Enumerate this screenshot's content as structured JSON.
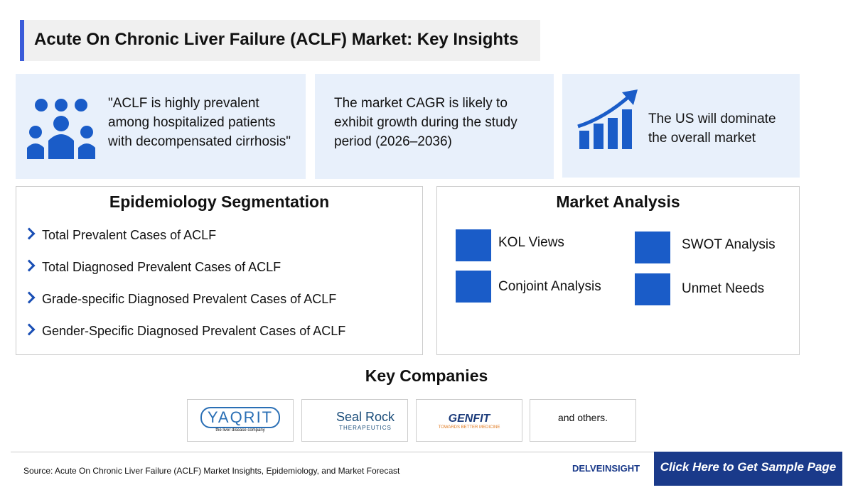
{
  "header": {
    "title": "Acute On Chronic Liver Failure (ACLF) Market: Key Insights"
  },
  "insights": [
    "\"ACLF is highly prevalent among hospitalized patients with decompensated cirrhosis\"",
    "The market CAGR is likely to exhibit growth during the study period (2026–2036)",
    "The US will dominate the overall market"
  ],
  "epidemiology": {
    "title": "Epidemiology Segmentation",
    "items": [
      "Total Prevalent Cases of ACLF",
      "Total Diagnosed Prevalent Cases of ACLF",
      "Grade-specific Diagnosed Prevalent Cases of ACLF",
      "Gender-Specific Diagnosed Prevalent Cases of ACLF"
    ]
  },
  "market_analysis": {
    "title": "Market Analysis",
    "items": [
      "KOL Views",
      "Conjoint Analysis",
      "SWOT Analysis",
      "Unmet Needs"
    ]
  },
  "key_companies": {
    "title": "Key Companies",
    "logos": [
      {
        "name": "YAQRIT",
        "tagline": "the liver disease company"
      },
      {
        "name": "Seal Rock",
        "tagline": "THERAPEUTICS"
      },
      {
        "name": "GENFIT",
        "tagline": "TOWARDS BETTER MEDICINE"
      }
    ],
    "others": "and others."
  },
  "footer": {
    "source": "Source: Acute On Chronic Liver Failure (ACLF) Market Insights, Epidemiology, and Market Forecast",
    "brand": "DELVEINSIGHT",
    "button": "Click Here to Get Sample Page"
  }
}
